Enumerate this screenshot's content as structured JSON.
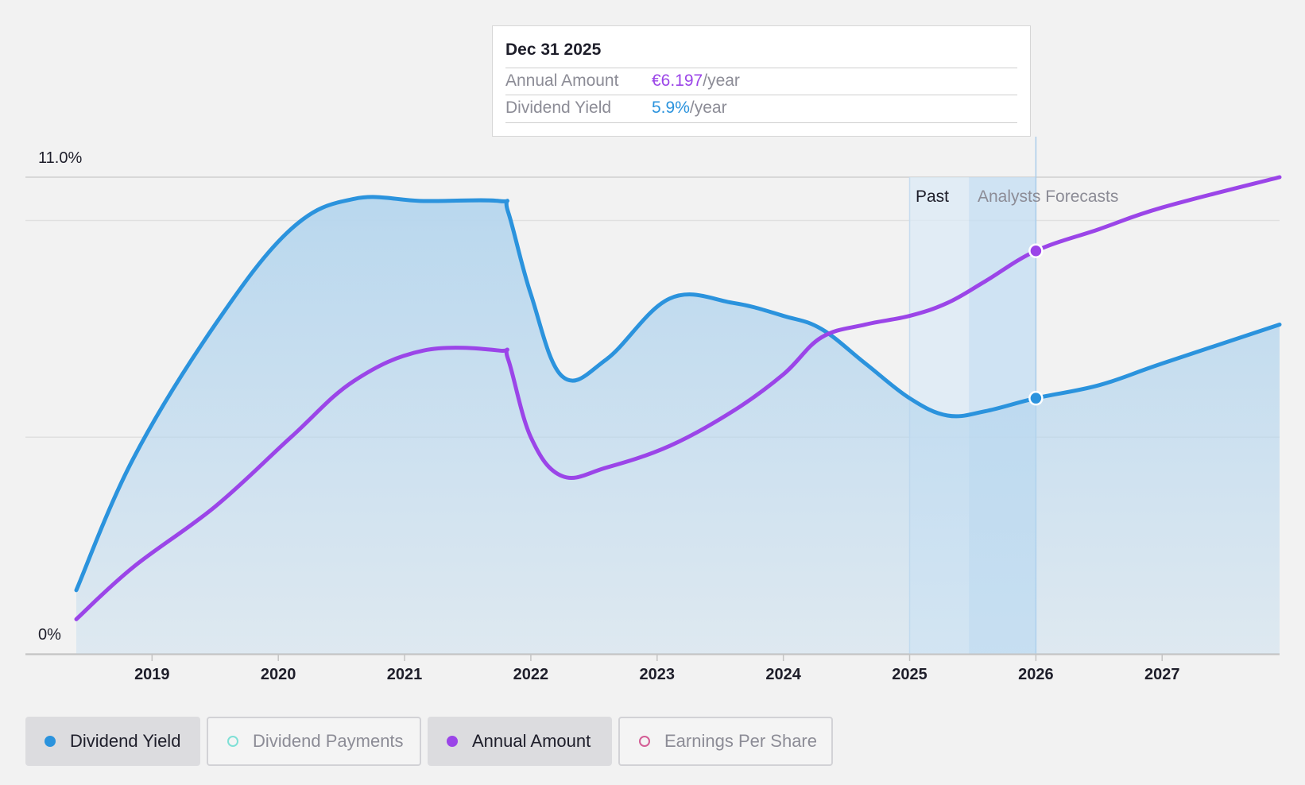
{
  "colors": {
    "dividend_yield": "#2b93dd",
    "annual_amount": "#9b45e8",
    "dividend_payments": "#7fe0d6",
    "earnings_per_share": "#d35d95",
    "area_fill": "#b6d6ee",
    "background": "#f2f2f2"
  },
  "tooltip": {
    "date": "Dec 31 2025",
    "rows": [
      {
        "label": "Annual Amount",
        "value": "€6.197",
        "unit": "/year",
        "color": "#9b45e8"
      },
      {
        "label": "Dividend Yield",
        "value": "5.9%",
        "unit": "/year",
        "color": "#2b93dd"
      }
    ]
  },
  "legend": [
    {
      "label": "Dividend Yield",
      "icon": "filled-dot-icon",
      "color": "#2b93dd",
      "active": true
    },
    {
      "label": "Dividend Payments",
      "icon": "hollow-dot-icon",
      "color": "#7fe0d6",
      "active": false
    },
    {
      "label": "Annual Amount",
      "icon": "filled-dot-icon",
      "color": "#9b45e8",
      "active": true
    },
    {
      "label": "Earnings Per Share",
      "icon": "hollow-dot-icon",
      "color": "#d35d95",
      "active": false
    }
  ],
  "chart_data": {
    "type": "area",
    "y_axis_labels": [
      "11.0%",
      "0%"
    ],
    "ylim": [
      0,
      11
    ],
    "xlim": [
      2018.4,
      2027.93
    ],
    "x_ticks": [
      2019,
      2020,
      2021,
      2022,
      2023,
      2024,
      2025,
      2026,
      2027
    ],
    "x_tick_labels": [
      "2019",
      "2020",
      "2021",
      "2022",
      "2023",
      "2024",
      "2025",
      "2026",
      "2027"
    ],
    "regions": {
      "past_label": "Past",
      "forecast_label": "Analysts Forecasts",
      "past_band": [
        2025.0,
        2025.47
      ],
      "forecast_band": [
        2025.47,
        2026.0
      ]
    },
    "highlight_x": 2026.0,
    "grid": true,
    "series": [
      {
        "name": "Dividend Yield",
        "filled": true,
        "points": [
          [
            2018.4,
            1.47
          ],
          [
            2018.85,
            4.5
          ],
          [
            2019.5,
            7.6
          ],
          [
            2020.1,
            9.8
          ],
          [
            2020.6,
            10.5
          ],
          [
            2021.15,
            10.45
          ],
          [
            2021.75,
            10.45
          ],
          [
            2021.82,
            10.2
          ],
          [
            2022.0,
            8.3
          ],
          [
            2022.25,
            6.4
          ],
          [
            2022.6,
            6.8
          ],
          [
            2023.1,
            8.2
          ],
          [
            2023.6,
            8.1
          ],
          [
            2024.0,
            7.8
          ],
          [
            2024.3,
            7.5
          ],
          [
            2024.65,
            6.7
          ],
          [
            2025.0,
            5.9
          ],
          [
            2025.3,
            5.5
          ],
          [
            2025.6,
            5.6
          ],
          [
            2026.0,
            5.9
          ],
          [
            2026.5,
            6.2
          ],
          [
            2027.0,
            6.7
          ],
          [
            2027.93,
            7.6
          ]
        ]
      },
      {
        "name": "Annual Amount",
        "filled": false,
        "points": [
          [
            2018.4,
            0.8
          ],
          [
            2018.85,
            2.0
          ],
          [
            2019.5,
            3.4
          ],
          [
            2020.1,
            5.0
          ],
          [
            2020.6,
            6.3
          ],
          [
            2021.15,
            7.0
          ],
          [
            2021.75,
            7.0
          ],
          [
            2021.82,
            6.8
          ],
          [
            2022.0,
            5.0
          ],
          [
            2022.25,
            4.1
          ],
          [
            2022.6,
            4.3
          ],
          [
            2023.1,
            4.8
          ],
          [
            2023.6,
            5.6
          ],
          [
            2024.0,
            6.45
          ],
          [
            2024.3,
            7.3
          ],
          [
            2024.65,
            7.6
          ],
          [
            2025.0,
            7.8
          ],
          [
            2025.3,
            8.1
          ],
          [
            2025.6,
            8.6
          ],
          [
            2026.0,
            9.3
          ],
          [
            2026.5,
            9.8
          ],
          [
            2027.0,
            10.3
          ],
          [
            2027.93,
            11.0
          ]
        ]
      }
    ]
  }
}
